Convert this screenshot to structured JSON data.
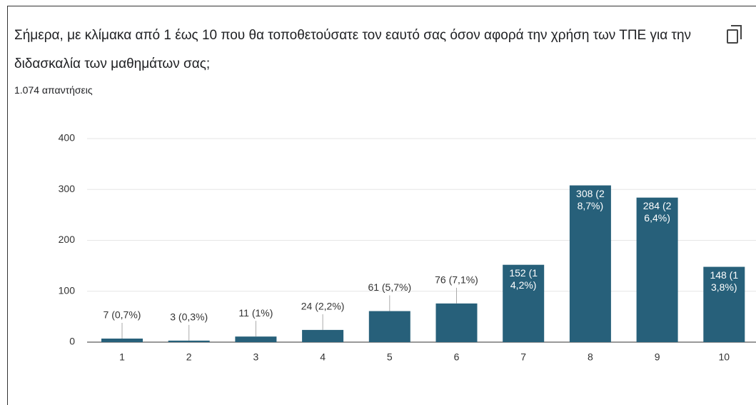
{
  "chart_data": {
    "type": "bar",
    "title": "Σήμερα, με κλίμακα από 1 έως 10 που θα τοποθετούσατε τον εαυτό σας όσον αφορά την χρήση των ΤΠΕ για την διδασκαλία των μαθημάτων σας;",
    "subtitle": "1.074 απαντήσεις",
    "categories": [
      "1",
      "2",
      "3",
      "4",
      "5",
      "6",
      "7",
      "8",
      "9",
      "10"
    ],
    "values": [
      7,
      3,
      11,
      24,
      61,
      76,
      152,
      308,
      284,
      148
    ],
    "value_labels": [
      "7 (0,7%)",
      "3 (0,3%)",
      "11 (1%)",
      "24 (2,2%)",
      "61 (5,7%)",
      "76 (7,1%)",
      "152 (14,2%)",
      "308 (28,7%)",
      "284 (26,4%)",
      "148 (13,8%)"
    ],
    "color": "#27607a",
    "ylim": [
      0,
      400
    ],
    "yticks": [
      0,
      100,
      200,
      300,
      400
    ],
    "grid": true
  }
}
